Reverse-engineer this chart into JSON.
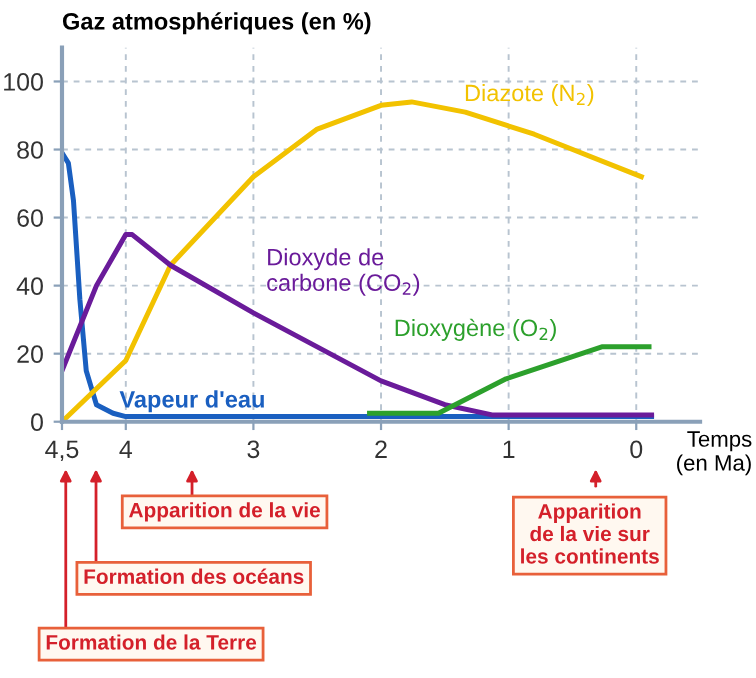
{
  "chart_data": {
    "type": "line",
    "ylabel": "Gaz atmosphériques (en %)",
    "xlabel": "Temps\n(en Ma)",
    "xlim": [
      4.5,
      -0.5
    ],
    "ylim": [
      0,
      110
    ],
    "xticks": [
      {
        "value": 4.5,
        "label": "4,5"
      },
      {
        "value": 4,
        "label": "4"
      },
      {
        "value": 3,
        "label": "3"
      },
      {
        "value": 2,
        "label": "2"
      },
      {
        "value": 1,
        "label": "1"
      },
      {
        "value": 0,
        "label": "0"
      }
    ],
    "yticks": [
      0,
      20,
      40,
      60,
      80,
      100
    ],
    "grid": true,
    "legend": false,
    "marker": "none",
    "line_style": "solid",
    "series": [
      {
        "name": "Vapeur d'eau",
        "color": "#1a5fc0",
        "x": [
          4.5,
          4.45,
          4.41,
          4.36,
          4.31,
          4.23,
          4.1,
          4.0,
          3.0,
          2.0,
          1.0,
          0.0,
          -0.12
        ],
        "values": [
          79,
          76,
          65,
          36,
          15,
          5,
          2.5,
          1.5,
          1.5,
          1.5,
          1.5,
          1.5,
          1.5
        ]
      },
      {
        "name": "Diazote (N$_{2}$)",
        "color": "#f2c200",
        "x": [
          4.5,
          4.0,
          3.65,
          3.0,
          2.5,
          2.0,
          1.76,
          1.34,
          0.8,
          -0.04
        ],
        "values": [
          0,
          18,
          46,
          72,
          86,
          93,
          94,
          91,
          84.5,
          72
        ]
      },
      {
        "name": "Dioxyde de\ncarbone (CO$_{2}$)",
        "color": "#6a1b9a",
        "x": [
          4.5,
          4.23,
          4.0,
          3.95,
          3.65,
          3.0,
          2.5,
          2.0,
          1.5,
          1.13,
          -0.12
        ],
        "values": [
          15,
          40,
          55,
          55,
          46,
          32,
          22,
          12,
          5,
          2,
          2
        ]
      },
      {
        "name": "Dioxygène (O$_{2}$)",
        "color": "#2ca02c",
        "x": [
          2.09,
          1.55,
          1.02,
          0.27,
          -0.1
        ],
        "values": [
          2.5,
          2.5,
          12.6,
          22,
          22
        ]
      }
    ],
    "annotations": [
      "Apparition de la vie",
      "Formation des océans",
      "Formation de la Terre",
      "Apparition\nde la vie sur\nles continents"
    ]
  }
}
